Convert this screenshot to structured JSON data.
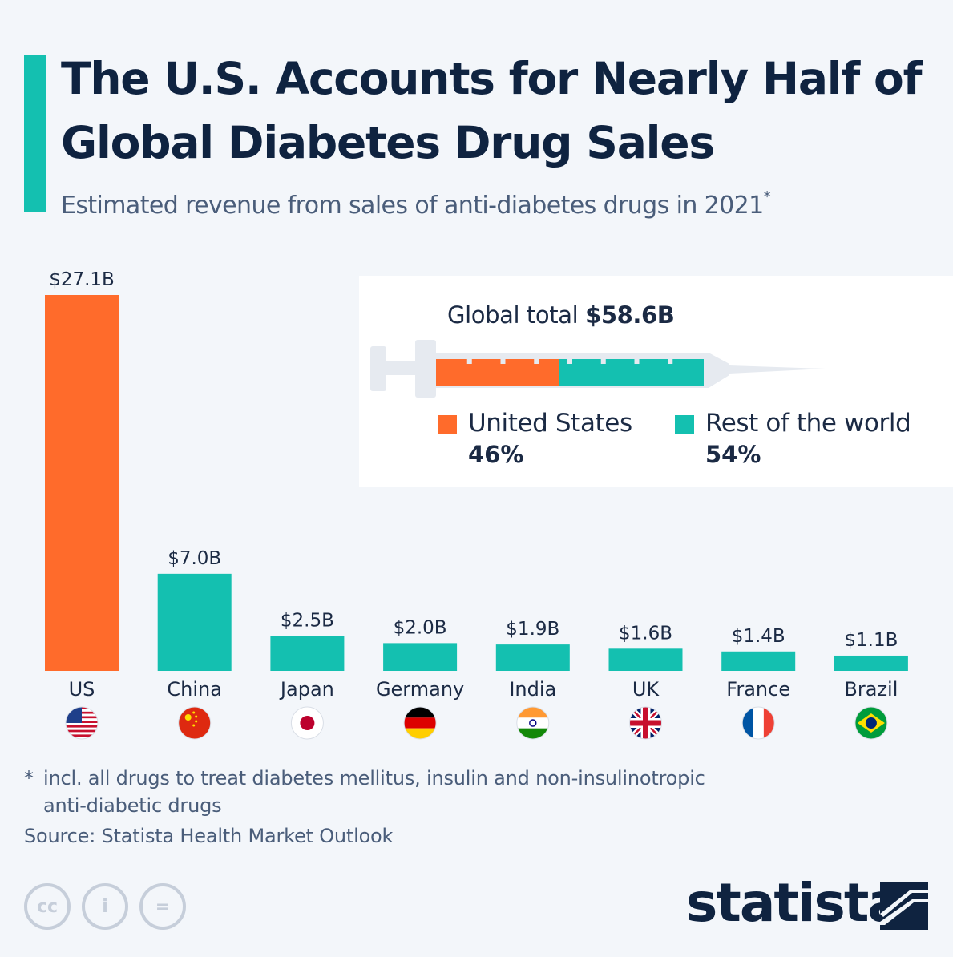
{
  "title": "The U.S. Accounts for Nearly Half of Global Diabetes Drug Sales",
  "subtitle": "Estimated revenue from sales of anti-diabetes drugs in 2021",
  "subtitle_marker": "*",
  "colors": {
    "us": "#ff6b2b",
    "others": "#14c0b0",
    "accent": "#14c0b0",
    "title": "#0f2340"
  },
  "chart_data": {
    "type": "bar",
    "categories": [
      "US",
      "China",
      "Japan",
      "Germany",
      "India",
      "UK",
      "France",
      "Brazil"
    ],
    "values": [
      27.1,
      7.0,
      2.5,
      2.0,
      1.9,
      1.6,
      1.4,
      1.1
    ],
    "value_labels": [
      "$27.1B",
      "$7.0B",
      "$2.5B",
      "$2.0B",
      "$1.9B",
      "$1.6B",
      "$1.4B",
      "$1.1B"
    ],
    "flags": [
      "us-flag-icon",
      "china-flag-icon",
      "japan-flag-icon",
      "germany-flag-icon",
      "india-flag-icon",
      "uk-flag-icon",
      "france-flag-icon",
      "brazil-flag-icon"
    ],
    "unit": "billion USD",
    "ylim": [
      0,
      27.1
    ],
    "grid": false
  },
  "inset": {
    "label": "Global total",
    "total": "$58.6B",
    "share": [
      {
        "name": "United States",
        "pct_label": "46%",
        "value": 46
      },
      {
        "name": "Rest of the world",
        "pct_label": "54%",
        "value": 54
      }
    ]
  },
  "footnote": {
    "marker": "*",
    "line1": "incl. all drugs to treat diabetes mellitus, insulin and non-insulinotropic",
    "line2": "anti-diabetic drugs"
  },
  "source": "Source: Statista Health Market Outlook",
  "license_icons": [
    {
      "name": "cc-icon",
      "glyph": "cc"
    },
    {
      "name": "attribution-icon",
      "glyph": "i"
    },
    {
      "name": "no-derivatives-icon",
      "glyph": "="
    }
  ],
  "brand": "statista"
}
